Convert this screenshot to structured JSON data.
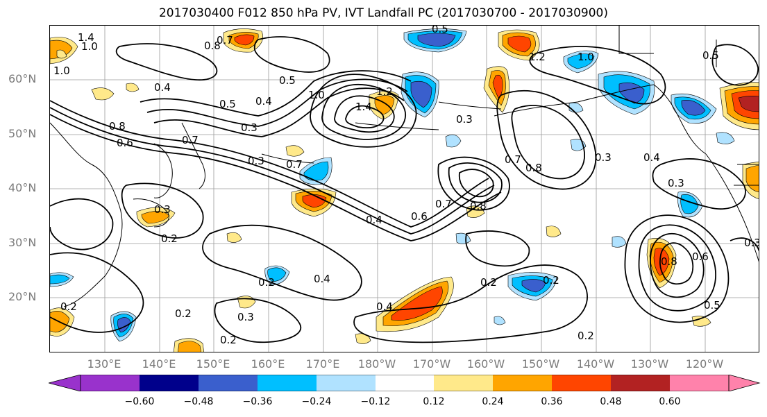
{
  "title": "2017030400 F012 850 hPa PV, IVT Landfall PC (2017030700 - 2017030900)",
  "lat_labels": [
    "60°N",
    "50°N",
    "40°N",
    "30°N",
    "20°N"
  ],
  "lon_labels": [
    "130°E",
    "140°E",
    "150°E",
    "160°E",
    "170°E",
    "180°W",
    "170°W",
    "160°W",
    "150°W",
    "140°W",
    "130°W",
    "120°W"
  ],
  "colorbar": {
    "ticks": [
      "−0.60",
      "−0.48",
      "−0.36",
      "−0.24",
      "−0.12",
      "0.12",
      "0.24",
      "0.36",
      "0.48",
      "0.60"
    ],
    "colors": [
      "#9932cc",
      "#00008b",
      "#3a5fcd",
      "#00bfff",
      "#b0e2ff",
      "#ffffff",
      "#ffe98a",
      "#ffa500",
      "#ff4500",
      "#b22222",
      "#ff82ab"
    ]
  },
  "contour_labels": [
    "1.4",
    "1.0",
    "0.8",
    "0.7",
    "0.5",
    "0.4",
    "0.3",
    "0.2",
    "0.6",
    "1.2"
  ],
  "shading_colors": {
    "pos1": "#ffe98a",
    "pos2": "#ffa500",
    "pos3": "#ff4500",
    "pos4": "#b22222",
    "neg1": "#b0e2ff",
    "neg2": "#00bfff",
    "neg3": "#3a5fcd",
    "neg4": "#00008b"
  }
}
